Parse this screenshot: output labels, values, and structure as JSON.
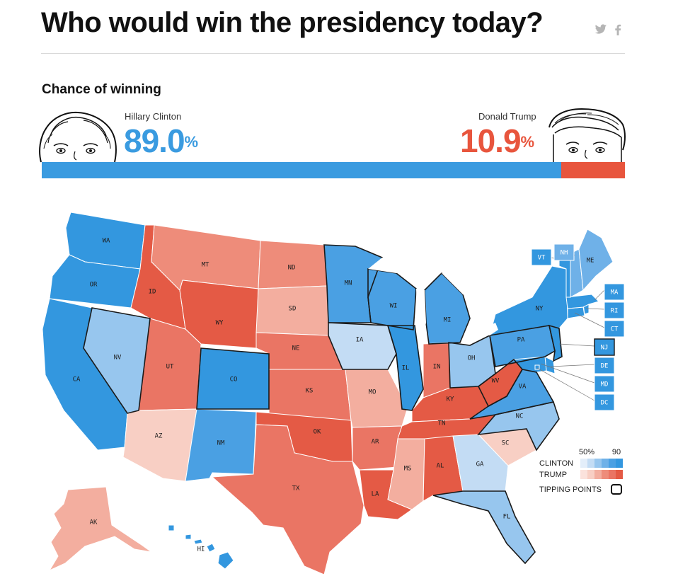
{
  "header": {
    "title": "Who would win the presidency today?",
    "twitter_icon": "twitter-icon",
    "facebook_icon": "facebook-icon"
  },
  "chance": {
    "heading": "Chance of winning",
    "clinton": {
      "name": "Hillary Clinton",
      "percent": "89.0",
      "percent_sign": "%",
      "value": 89.0,
      "color": "#3a9be0"
    },
    "trump": {
      "name": "Donald Trump",
      "percent": "10.9",
      "percent_sign": "%",
      "value": 10.9,
      "color": "#e8553d"
    }
  },
  "map": {
    "states": {
      "WA": {
        "label": "WA",
        "party": "clinton",
        "shade": 5
      },
      "OR": {
        "label": "OR",
        "party": "clinton",
        "shade": 5
      },
      "CA": {
        "label": "CA",
        "party": "clinton",
        "shade": 5
      },
      "NV": {
        "label": "NV",
        "party": "clinton",
        "shade": 2
      },
      "ID": {
        "label": "ID",
        "party": "trump",
        "shade": 5
      },
      "MT": {
        "label": "MT",
        "party": "trump",
        "shade": 3
      },
      "WY": {
        "label": "WY",
        "party": "trump",
        "shade": 5
      },
      "UT": {
        "label": "UT",
        "party": "trump",
        "shade": 4
      },
      "AZ": {
        "label": "AZ",
        "party": "trump",
        "shade": 1
      },
      "CO": {
        "label": "CO",
        "party": "clinton",
        "shade": 5
      },
      "NM": {
        "label": "NM",
        "party": "clinton",
        "shade": 4
      },
      "ND": {
        "label": "ND",
        "party": "trump",
        "shade": 3
      },
      "SD": {
        "label": "SD",
        "party": "trump",
        "shade": 2
      },
      "NE": {
        "label": "NE",
        "party": "trump",
        "shade": 4
      },
      "KS": {
        "label": "KS",
        "party": "trump",
        "shade": 4
      },
      "OK": {
        "label": "OK",
        "party": "trump",
        "shade": 5
      },
      "TX": {
        "label": "TX",
        "party": "trump",
        "shade": 4
      },
      "MN": {
        "label": "MN",
        "party": "clinton",
        "shade": 4
      },
      "IA": {
        "label": "IA",
        "party": "clinton",
        "shade": 1
      },
      "MO": {
        "label": "MO",
        "party": "trump",
        "shade": 2
      },
      "AR": {
        "label": "AR",
        "party": "trump",
        "shade": 4
      },
      "LA": {
        "label": "LA",
        "party": "trump",
        "shade": 5
      },
      "WI": {
        "label": "WI",
        "party": "clinton",
        "shade": 4
      },
      "IL": {
        "label": "IL",
        "party": "clinton",
        "shade": 5
      },
      "MI": {
        "label": "MI",
        "party": "clinton",
        "shade": 4
      },
      "IN": {
        "label": "IN",
        "party": "trump",
        "shade": 4
      },
      "OH": {
        "label": "OH",
        "party": "clinton",
        "shade": 2
      },
      "KY": {
        "label": "KY",
        "party": "trump",
        "shade": 5
      },
      "WV": {
        "label": "WV",
        "party": "trump",
        "shade": 5
      },
      "TN": {
        "label": "TN",
        "party": "trump",
        "shade": 5
      },
      "MS": {
        "label": "MS",
        "party": "trump",
        "shade": 2
      },
      "AL": {
        "label": "AL",
        "party": "trump",
        "shade": 5
      },
      "GA": {
        "label": "GA",
        "party": "clinton",
        "shade": 1
      },
      "FL": {
        "label": "FL",
        "party": "clinton",
        "shade": 2
      },
      "SC": {
        "label": "SC",
        "party": "trump",
        "shade": 1
      },
      "NC": {
        "label": "NC",
        "party": "clinton",
        "shade": 2
      },
      "VA": {
        "label": "VA",
        "party": "clinton",
        "shade": 4
      },
      "PA": {
        "label": "PA",
        "party": "clinton",
        "shade": 4
      },
      "NY": {
        "label": "NY",
        "party": "clinton",
        "shade": 5
      },
      "ME": {
        "label": "ME",
        "party": "clinton",
        "shade": 3
      },
      "VT": {
        "label": "VT",
        "party": "clinton",
        "shade": 5
      },
      "NH": {
        "label": "NH",
        "party": "clinton",
        "shade": 3
      },
      "MA": {
        "label": "MA",
        "party": "clinton",
        "shade": 5
      },
      "RI": {
        "label": "RI",
        "party": "clinton",
        "shade": 5
      },
      "CT": {
        "label": "CT",
        "party": "clinton",
        "shade": 5
      },
      "NJ": {
        "label": "NJ",
        "party": "clinton",
        "shade": 5
      },
      "DE": {
        "label": "DE",
        "party": "clinton",
        "shade": 5
      },
      "MD": {
        "label": "MD",
        "party": "clinton",
        "shade": 5
      },
      "DC": {
        "label": "DC",
        "party": "clinton",
        "shade": 5
      },
      "AK": {
        "label": "AK",
        "party": "trump",
        "shade": 2
      },
      "HI": {
        "label": "HI",
        "party": "clinton",
        "shade": 5
      }
    },
    "tipping_point_states": [
      "NV",
      "CO",
      "IA",
      "IL",
      "MI",
      "WI",
      "MN",
      "OH",
      "PA",
      "NJ",
      "VA",
      "NC",
      "FL",
      "WV"
    ],
    "palette": {
      "clinton": [
        "#e3eefa",
        "#c3dcf4",
        "#97c6ee",
        "#6fb1e8",
        "#4aa0e3",
        "#3397df"
      ],
      "trump": [
        "#fbe2dc",
        "#f8cfc4",
        "#f3ae9f",
        "#ee8c7a",
        "#ea7564",
        "#e45a45"
      ]
    }
  },
  "legend": {
    "tick_low": "50%",
    "tick_high": "90",
    "clinton_label": "CLINTON",
    "trump_label": "TRUMP",
    "tipping_label": "TIPPING POINTS"
  }
}
